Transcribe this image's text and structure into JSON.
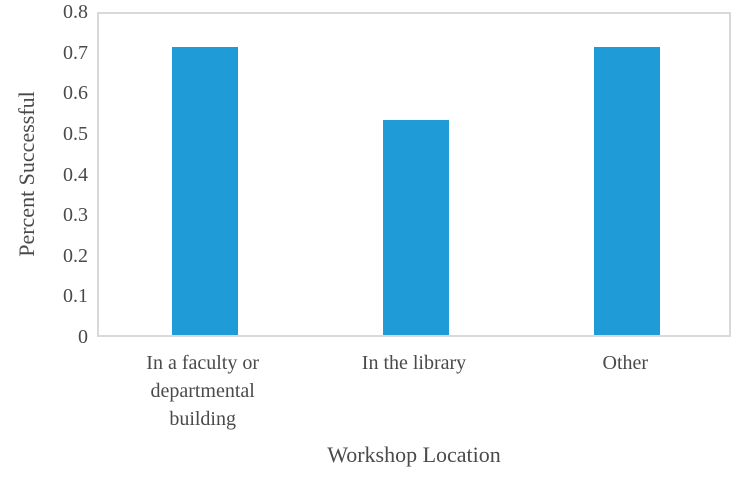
{
  "chart_data": {
    "type": "bar",
    "title": "",
    "xlabel": "Workshop Location",
    "ylabel": "Percent Successful",
    "categories": [
      "In a faculty or departmental building",
      "In the library",
      "Other"
    ],
    "values": [
      0.71,
      0.53,
      0.71
    ],
    "ylim": [
      0,
      0.8
    ],
    "ytick_step": 0.1,
    "yticks": [
      "0",
      "0.1",
      "0.2",
      "0.3",
      "0.4",
      "0.5",
      "0.6",
      "0.7",
      "0.8"
    ],
    "grid": false,
    "legend": false,
    "colors": {
      "bar": "#1F9CD7",
      "plot_border": "#D9D9D9",
      "text": "#4A4A4A",
      "background": "#FFFFFF"
    }
  }
}
